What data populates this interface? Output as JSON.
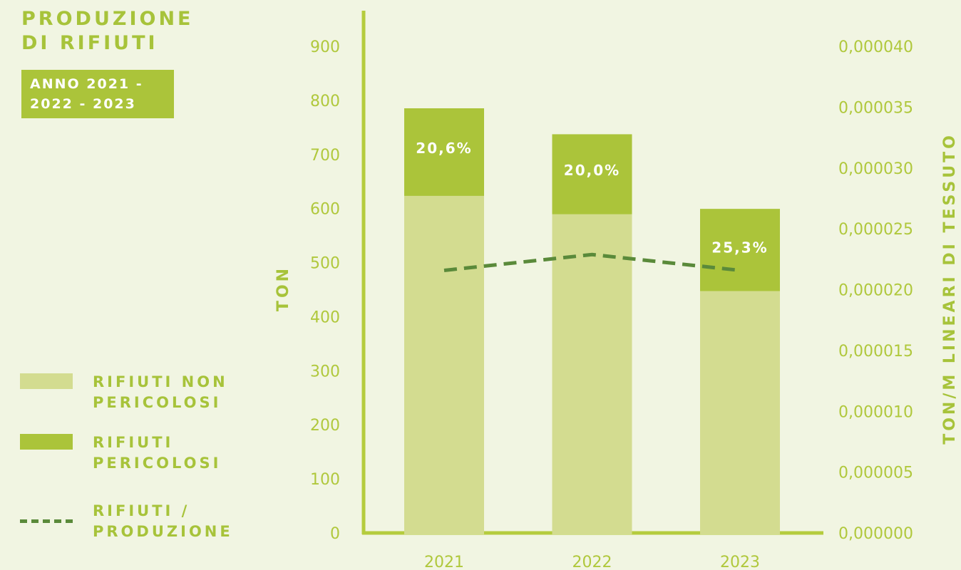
{
  "chart_data": {
    "type": "bar",
    "title": "PRODUZIONE DI RIFIUTI",
    "subtitle": "ANNO 2021 - 2022 - 2023",
    "y_label": "TON",
    "y2_label": "TON/M LINEARI DI TESSUTO",
    "categories": [
      "2021",
      "2022",
      "2023"
    ],
    "stacked": true,
    "series": [
      {
        "name": "RIFIUTI NON PERICOLOSI",
        "color": "#d3dc90",
        "values": [
          626,
          592,
          450
        ]
      },
      {
        "name": "RIFIUTI PERICOLOSI",
        "color": "#abc43a",
        "values": [
          162,
          148,
          152
        ],
        "percent_labels": [
          "20,6%",
          "20,0%",
          "25,3%"
        ]
      },
      {
        "name": "RIFIUTI / PRODUZIONE",
        "color": "#5a8a3a",
        "type": "line",
        "dashed": true,
        "axis": "y2",
        "values": [
          2.17e-05,
          2.3e-05,
          2.17e-05
        ]
      }
    ],
    "ylim": [
      0,
      900
    ],
    "yticks": [
      0,
      100,
      200,
      300,
      400,
      500,
      600,
      700,
      800,
      900
    ],
    "y2lim": [
      0,
      4e-05
    ],
    "y2ticks": [
      {
        "value": 0,
        "label": "0,000000"
      },
      {
        "value": 5e-06,
        "label": "0,000005"
      },
      {
        "value": 1e-05,
        "label": "0,000010"
      },
      {
        "value": 1.5e-05,
        "label": "0,000015"
      },
      {
        "value": 2e-05,
        "label": "0,000020"
      },
      {
        "value": 2.5e-05,
        "label": "0,000025"
      },
      {
        "value": 3e-05,
        "label": "0,000030"
      },
      {
        "value": 3.5e-05,
        "label": "0,000035"
      },
      {
        "value": 4e-05,
        "label": "0,000040"
      }
    ],
    "legend": "left"
  }
}
